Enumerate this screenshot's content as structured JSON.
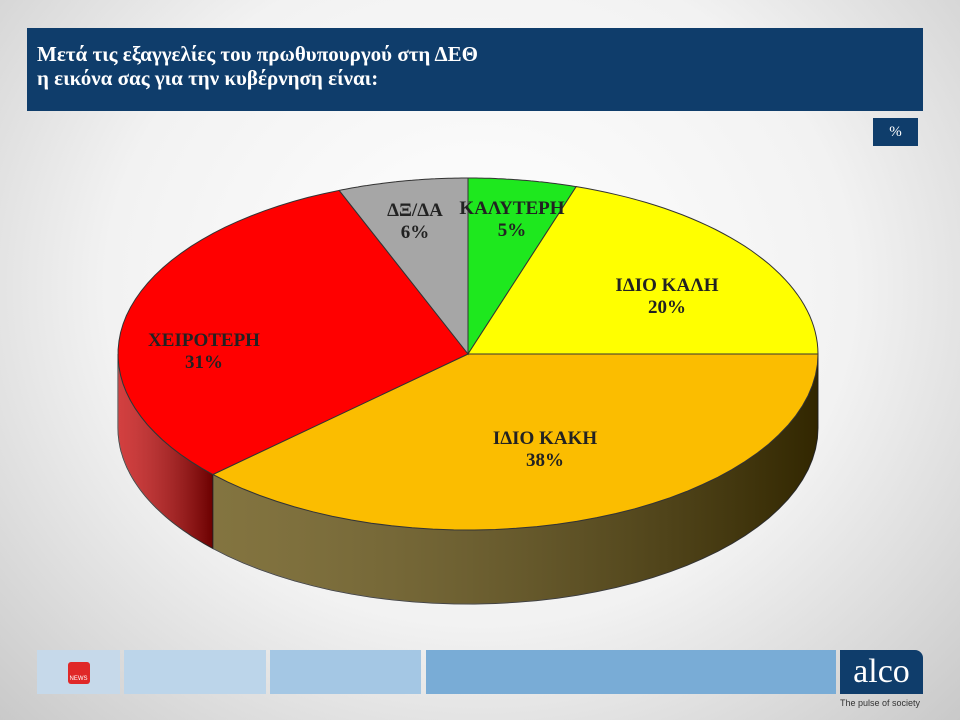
{
  "header": {
    "line1": "Μετά τις εξαγγελίες του πρωθυπουργού στη ΔΕΘ",
    "line2": "η εικόνα σας για την κυβέρνηση είναι:"
  },
  "unit_badge": "%",
  "footer": {
    "alco_logo": "alco",
    "tagline": "The pulse of society",
    "news_logo": "NEWS"
  },
  "chart_data": {
    "type": "pie",
    "title": "Μετά τις εξαγγελίες του πρωθυπουργού στη ΔΕΘ η εικόνα σας για την κυβέρνηση είναι:",
    "unit": "%",
    "slices": [
      {
        "label": "ΚΑΛΥΤΕΡΗ",
        "value": 5,
        "text": "5%",
        "color": "#1ee81e",
        "side": "#119911"
      },
      {
        "label": "ΙΔΙΟ ΚΑΛΗ",
        "value": 20,
        "text": "20%",
        "color": "#ffff00",
        "side": "#a6a600"
      },
      {
        "label": "ΙΔΙΟ ΚΑΚΗ",
        "value": 38,
        "text": "38%",
        "color": "#fbbd00",
        "side": "#5a4600"
      },
      {
        "label": "ΧΕΙΡΟΤΕΡΗ",
        "value": 31,
        "text": "31%",
        "color": "#ff0000",
        "side": "#c40000"
      },
      {
        "label": "ΔΞ/ΔΑ",
        "value": 6,
        "text": "6%",
        "color": "#a6a6a6",
        "side": "#707070"
      }
    ]
  }
}
